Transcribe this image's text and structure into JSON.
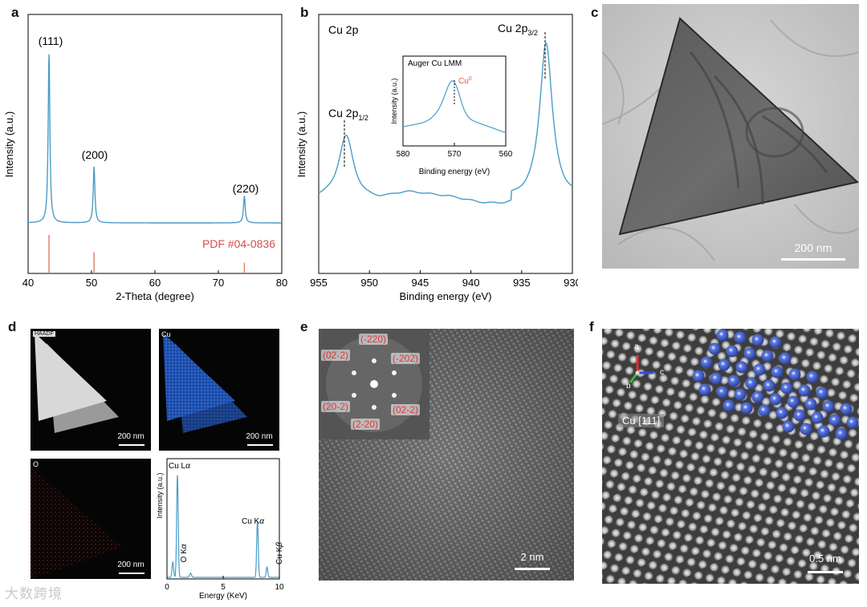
{
  "panels": {
    "a": {
      "label": "a",
      "chart_data": {
        "type": "line",
        "title": "",
        "xlabel": "2-Theta (degree)",
        "ylabel": "Intensity (a.u.)",
        "xlim": [
          40,
          80
        ],
        "xticks": [
          40,
          50,
          60,
          70,
          80
        ],
        "series": [
          {
            "name": "XRD",
            "color": "#4a9cc8"
          }
        ],
        "peaks": [
          {
            "x": 43.3,
            "rel_intensity": 1.0,
            "label": "(111)"
          },
          {
            "x": 50.4,
            "rel_intensity": 0.33,
            "label": "(200)"
          },
          {
            "x": 74.1,
            "rel_intensity": 0.16,
            "label": "(220)"
          }
        ],
        "reference": {
          "name": "PDF #04-0836",
          "color": "#e07a5f",
          "sticks": [
            {
              "x": 43.3,
              "rel": 1.0
            },
            {
              "x": 50.4,
              "rel": 0.55
            },
            {
              "x": 74.1,
              "rel": 0.28
            }
          ]
        }
      }
    },
    "b": {
      "label": "b",
      "chart_data": {
        "type": "line",
        "title": "Cu 2p",
        "xlabel": "Binding energy (eV)",
        "ylabel": "Intensity (a.u.)",
        "xlim": [
          955,
          930
        ],
        "xticks": [
          955,
          950,
          945,
          940,
          935,
          930
        ],
        "series": [
          {
            "name": "XPS",
            "color": "#4a9cc8"
          }
        ],
        "peaks": [
          {
            "x": 952.3,
            "label_main": "Cu 2p",
            "label_sub": "1/2"
          },
          {
            "x": 932.6,
            "label_main": "Cu 2p",
            "label_sub": "3/2"
          }
        ],
        "inset": {
          "title": "Auger Cu LMM",
          "xlabel": "Binding energy (eV)",
          "ylabel": "Intensity (a.u.)",
          "xlim": [
            580,
            560
          ],
          "xticks": [
            580,
            570,
            560
          ],
          "peak": {
            "x": 570.1,
            "label": "Cu",
            "label_sup": "0",
            "label_color": "#e05a3a"
          }
        }
      }
    },
    "c": {
      "label": "c",
      "scale_bar": "200 nm"
    },
    "d": {
      "label": "d",
      "maps": [
        {
          "tag": "HAADF",
          "scale_bar": "200 nm"
        },
        {
          "tag": "Cu",
          "scale_bar": "200 nm"
        },
        {
          "tag": "O",
          "scale_bar": "200 nm"
        }
      ],
      "chart_data": {
        "type": "line",
        "title": "",
        "xlabel": "Energy (KeV)",
        "ylabel": "Intensity (a.u.)",
        "xlim": [
          0,
          10
        ],
        "xticks": [
          0,
          5,
          10
        ],
        "series": [
          {
            "name": "EDS",
            "color": "#4a9cc8"
          }
        ],
        "peaks": [
          {
            "x": 0.52,
            "label_main": "O K",
            "label_greek": "α"
          },
          {
            "x": 0.93,
            "label_main": "Cu L",
            "label_greek": "α"
          },
          {
            "x": 8.05,
            "label_main": "Cu K",
            "label_greek": "α"
          },
          {
            "x": 8.9,
            "label_main": "Cu K",
            "label_greek": "β"
          }
        ]
      }
    },
    "e": {
      "label": "e",
      "scale_bar": "2 nm",
      "fft_spots": [
        "(-220)",
        "(02-2)",
        "(-202)",
        "(20-2)",
        "(02-2)",
        "(2-20)"
      ]
    },
    "f": {
      "label": "f",
      "scale_bar": "0.5 nm",
      "zone_axis": "Cu [111]",
      "axes": {
        "a": "a",
        "b": "b",
        "c": "c"
      }
    }
  },
  "watermark": "大数跨境"
}
